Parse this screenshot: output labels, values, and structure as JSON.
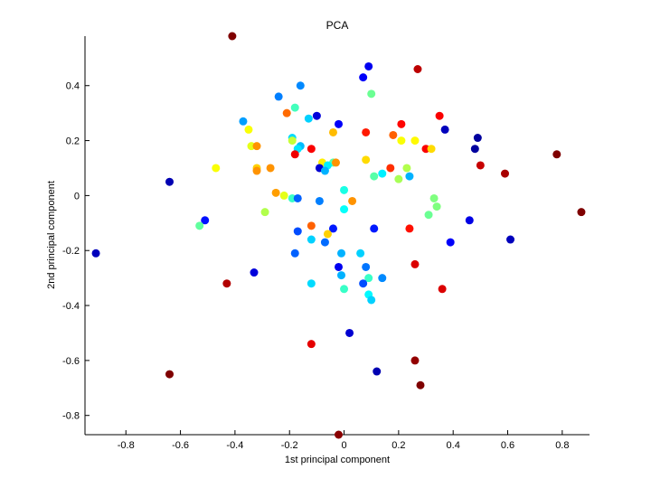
{
  "chart_data": {
    "type": "scatter",
    "title": "PCA",
    "xlabel": "1st principal component",
    "ylabel": "2nd principal component",
    "xlim": [
      -0.95,
      0.9
    ],
    "ylim": [
      -0.87,
      0.58
    ],
    "xticks": [
      -0.8,
      -0.6,
      -0.4,
      -0.2,
      0,
      0.2,
      0.4,
      0.6,
      0.8
    ],
    "xtick_labels": [
      "-0.8",
      "-0.6",
      "-0.4",
      "-0.2",
      "0",
      "0.2",
      "0.4",
      "0.6",
      "0.8"
    ],
    "yticks": [
      -0.8,
      -0.6,
      -0.4,
      -0.2,
      0,
      0.2,
      0.4
    ],
    "ytick_labels": [
      "-0.8",
      "-0.6",
      "-0.4",
      "-0.2",
      "0",
      "0.2",
      "0.4"
    ],
    "grid": false,
    "colormap": "jet",
    "color_scale": [
      "#00007f",
      "#0000ff",
      "#007fff",
      "#00ffff",
      "#7fff7f",
      "#ffff00",
      "#ff7f00",
      "#ff0000",
      "#7f0000"
    ],
    "points": [
      {
        "x": -0.41,
        "y": 0.58,
        "c": 1.0
      },
      {
        "x": 0.09,
        "y": 0.47,
        "c": 0.11
      },
      {
        "x": 0.27,
        "y": 0.46,
        "c": 0.94
      },
      {
        "x": 0.07,
        "y": 0.43,
        "c": 0.12
      },
      {
        "x": -0.16,
        "y": 0.4,
        "c": 0.26
      },
      {
        "x": 0.1,
        "y": 0.37,
        "c": 0.48
      },
      {
        "x": -0.24,
        "y": 0.36,
        "c": 0.25
      },
      {
        "x": -0.18,
        "y": 0.32,
        "c": 0.44
      },
      {
        "x": -0.21,
        "y": 0.3,
        "c": 0.77
      },
      {
        "x": -0.1,
        "y": 0.29,
        "c": 0.09
      },
      {
        "x": 0.35,
        "y": 0.29,
        "c": 0.88
      },
      {
        "x": -0.13,
        "y": 0.28,
        "c": 0.33
      },
      {
        "x": -0.37,
        "y": 0.27,
        "c": 0.28
      },
      {
        "x": -0.02,
        "y": 0.26,
        "c": 0.12
      },
      {
        "x": 0.21,
        "y": 0.26,
        "c": 0.87
      },
      {
        "x": 0.37,
        "y": 0.24,
        "c": 0.06
      },
      {
        "x": -0.35,
        "y": 0.24,
        "c": 0.62
      },
      {
        "x": 0.08,
        "y": 0.23,
        "c": 0.85
      },
      {
        "x": -0.04,
        "y": 0.23,
        "c": 0.69
      },
      {
        "x": 0.18,
        "y": 0.22,
        "c": 0.78
      },
      {
        "x": -0.19,
        "y": 0.21,
        "c": 0.34
      },
      {
        "x": 0.49,
        "y": 0.21,
        "c": 0.03
      },
      {
        "x": 0.26,
        "y": 0.2,
        "c": 0.63
      },
      {
        "x": 0.21,
        "y": 0.2,
        "c": 0.62
      },
      {
        "x": -0.19,
        "y": 0.2,
        "c": 0.57
      },
      {
        "x": -0.34,
        "y": 0.18,
        "c": 0.6
      },
      {
        "x": -0.32,
        "y": 0.18,
        "c": 0.73
      },
      {
        "x": -0.16,
        "y": 0.18,
        "c": 0.31
      },
      {
        "x": -0.17,
        "y": 0.17,
        "c": 0.35
      },
      {
        "x": -0.12,
        "y": 0.17,
        "c": 0.88
      },
      {
        "x": 0.48,
        "y": 0.17,
        "c": 0.03
      },
      {
        "x": 0.3,
        "y": 0.17,
        "c": 0.88
      },
      {
        "x": 0.32,
        "y": 0.17,
        "c": 0.66
      },
      {
        "x": 0.78,
        "y": 0.15,
        "c": 1.0
      },
      {
        "x": -0.18,
        "y": 0.15,
        "c": 0.89
      },
      {
        "x": 0.08,
        "y": 0.13,
        "c": 0.66
      },
      {
        "x": -0.08,
        "y": 0.12,
        "c": 0.64
      },
      {
        "x": -0.04,
        "y": 0.12,
        "c": 0.46
      },
      {
        "x": -0.03,
        "y": 0.12,
        "c": 0.73
      },
      {
        "x": 0.5,
        "y": 0.11,
        "c": 0.93
      },
      {
        "x": -0.06,
        "y": 0.11,
        "c": 0.36
      },
      {
        "x": -0.09,
        "y": 0.1,
        "c": 0.08
      },
      {
        "x": -0.47,
        "y": 0.1,
        "c": 0.62
      },
      {
        "x": -0.32,
        "y": 0.1,
        "c": 0.67
      },
      {
        "x": -0.27,
        "y": 0.1,
        "c": 0.73
      },
      {
        "x": 0.23,
        "y": 0.1,
        "c": 0.55
      },
      {
        "x": 0.17,
        "y": 0.1,
        "c": 0.83
      },
      {
        "x": -0.07,
        "y": 0.09,
        "c": 0.3
      },
      {
        "x": -0.32,
        "y": 0.09,
        "c": 0.73
      },
      {
        "x": 0.59,
        "y": 0.08,
        "c": 0.96
      },
      {
        "x": 0.14,
        "y": 0.08,
        "c": 0.36
      },
      {
        "x": 0.11,
        "y": 0.07,
        "c": 0.46
      },
      {
        "x": 0.24,
        "y": 0.07,
        "c": 0.3
      },
      {
        "x": 0.2,
        "y": 0.06,
        "c": 0.54
      },
      {
        "x": -0.64,
        "y": 0.05,
        "c": 0.05
      },
      {
        "x": -0.25,
        "y": 0.01,
        "c": 0.72
      },
      {
        "x": 0.0,
        "y": 0.02,
        "c": 0.4
      },
      {
        "x": -0.22,
        "y": 0.0,
        "c": 0.6
      },
      {
        "x": -0.19,
        "y": -0.01,
        "c": 0.43
      },
      {
        "x": -0.17,
        "y": -0.01,
        "c": 0.22
      },
      {
        "x": 0.33,
        "y": -0.01,
        "c": 0.5
      },
      {
        "x": 0.03,
        "y": -0.02,
        "c": 0.73
      },
      {
        "x": -0.09,
        "y": -0.02,
        "c": 0.25
      },
      {
        "x": 0.34,
        "y": -0.04,
        "c": 0.5
      },
      {
        "x": 0.0,
        "y": -0.05,
        "c": 0.38
      },
      {
        "x": -0.29,
        "y": -0.06,
        "c": 0.55
      },
      {
        "x": 0.87,
        "y": -0.06,
        "c": 1.0
      },
      {
        "x": 0.31,
        "y": -0.07,
        "c": 0.48
      },
      {
        "x": 0.46,
        "y": -0.09,
        "c": 0.1
      },
      {
        "x": -0.51,
        "y": -0.09,
        "c": 0.14
      },
      {
        "x": -0.53,
        "y": -0.11,
        "c": 0.47
      },
      {
        "x": -0.12,
        "y": -0.11,
        "c": 0.78
      },
      {
        "x": 0.24,
        "y": -0.12,
        "c": 0.86
      },
      {
        "x": -0.04,
        "y": -0.12,
        "c": 0.15
      },
      {
        "x": 0.11,
        "y": -0.12,
        "c": 0.15
      },
      {
        "x": -0.17,
        "y": -0.13,
        "c": 0.2
      },
      {
        "x": -0.06,
        "y": -0.14,
        "c": 0.67
      },
      {
        "x": 0.61,
        "y": -0.16,
        "c": 0.06
      },
      {
        "x": -0.12,
        "y": -0.16,
        "c": 0.33
      },
      {
        "x": -0.07,
        "y": -0.17,
        "c": 0.23
      },
      {
        "x": 0.39,
        "y": -0.17,
        "c": 0.12
      },
      {
        "x": -0.91,
        "y": -0.21,
        "c": 0.06
      },
      {
        "x": 0.06,
        "y": -0.21,
        "c": 0.33
      },
      {
        "x": -0.01,
        "y": -0.21,
        "c": 0.3
      },
      {
        "x": -0.18,
        "y": -0.21,
        "c": 0.22
      },
      {
        "x": 0.26,
        "y": -0.25,
        "c": 0.91
      },
      {
        "x": -0.02,
        "y": -0.26,
        "c": 0.11
      },
      {
        "x": 0.08,
        "y": -0.26,
        "c": 0.24
      },
      {
        "x": -0.33,
        "y": -0.28,
        "c": 0.09
      },
      {
        "x": -0.01,
        "y": -0.29,
        "c": 0.3
      },
      {
        "x": 0.14,
        "y": -0.3,
        "c": 0.26
      },
      {
        "x": 0.09,
        "y": -0.3,
        "c": 0.43
      },
      {
        "x": -0.12,
        "y": -0.32,
        "c": 0.34
      },
      {
        "x": -0.43,
        "y": -0.32,
        "c": 0.95
      },
      {
        "x": 0.07,
        "y": -0.32,
        "c": 0.2
      },
      {
        "x": 0.36,
        "y": -0.34,
        "c": 0.91
      },
      {
        "x": 0.0,
        "y": -0.34,
        "c": 0.43
      },
      {
        "x": 0.09,
        "y": -0.36,
        "c": 0.37
      },
      {
        "x": 0.1,
        "y": -0.38,
        "c": 0.33
      },
      {
        "x": 0.02,
        "y": -0.5,
        "c": 0.08
      },
      {
        "x": -0.12,
        "y": -0.54,
        "c": 0.9
      },
      {
        "x": 0.26,
        "y": -0.6,
        "c": 0.98
      },
      {
        "x": 0.12,
        "y": -0.64,
        "c": 0.05
      },
      {
        "x": -0.64,
        "y": -0.65,
        "c": 1.0
      },
      {
        "x": 0.28,
        "y": -0.69,
        "c": 1.0
      },
      {
        "x": -0.02,
        "y": -0.87,
        "c": 0.99
      }
    ]
  }
}
